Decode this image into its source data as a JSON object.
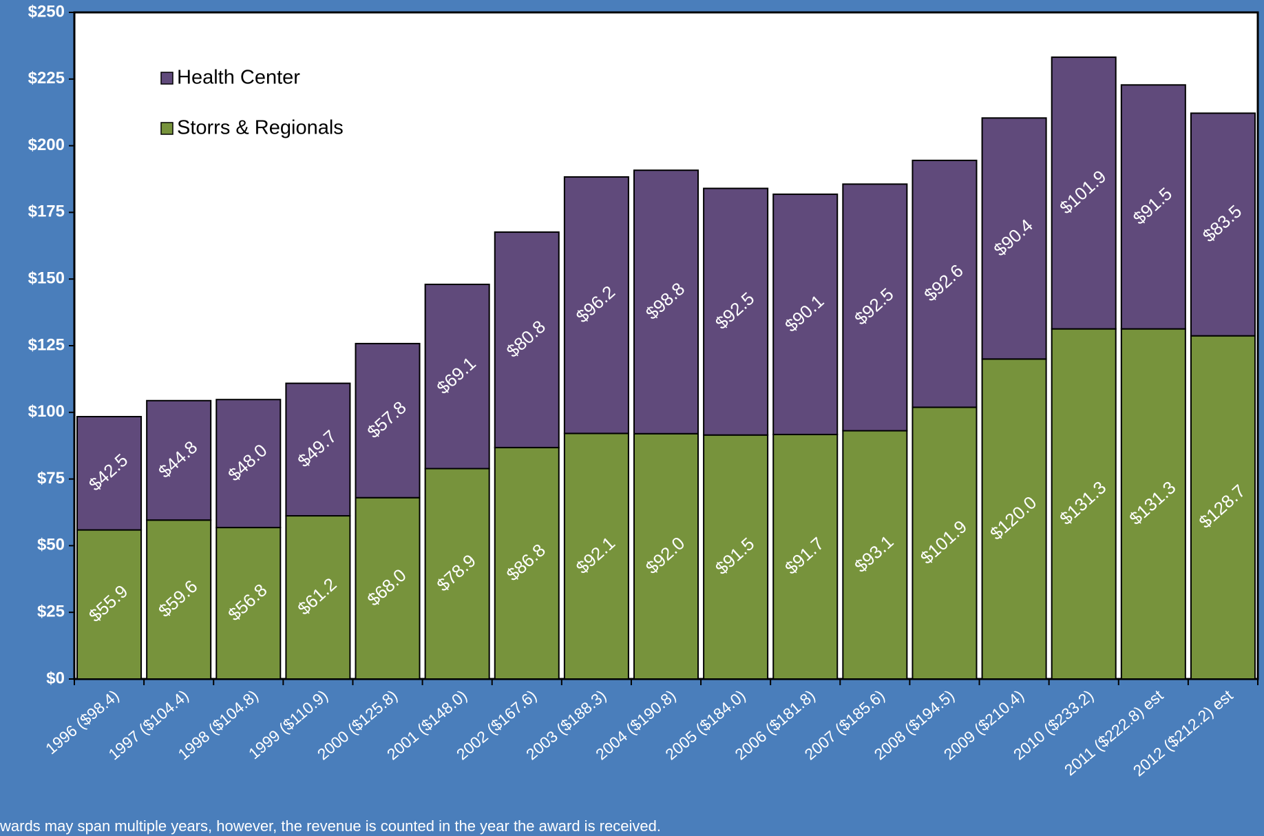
{
  "chart_data": {
    "type": "stacked_bar",
    "categories": [
      "1996 ($98.4)",
      "1997 ($104.4)",
      "1998 ($104.8)",
      "1999 ($110.9)",
      "2000 ($125.8)",
      "2001 ($148.0)",
      "2002 ($167.6)",
      "2003 ($188.3)",
      "2004 ($190.8)",
      "2005 ($184.0)",
      "2006 ($181.8)",
      "2007 ($185.6)",
      "2008 ($194.5)",
      "2009 ($210.4)",
      "2010 ($233.2)",
      "2011 ($222.8) est",
      "2012 ($212.2) est"
    ],
    "series": [
      {
        "name": "Storrs & Regionals",
        "color": "#77933c",
        "values": [
          55.9,
          59.6,
          56.8,
          61.2,
          68.0,
          78.9,
          86.8,
          92.1,
          92.0,
          91.5,
          91.7,
          93.1,
          101.9,
          120.0,
          131.3,
          131.3,
          128.7
        ],
        "value_labels": [
          "$55.9",
          "$59.6",
          "$56.8",
          "$61.2",
          "$68.0",
          "$78.9",
          "$86.8",
          "$92.1",
          "$92.0",
          "$91.5",
          "$91.7",
          "$93.1",
          "$101.9",
          "$120.0",
          "$131.3",
          "$131.3",
          "$128.7"
        ]
      },
      {
        "name": "Health Center",
        "color": "#604a7b",
        "values": [
          42.5,
          44.8,
          48.0,
          49.7,
          57.8,
          69.1,
          80.8,
          96.2,
          98.8,
          92.5,
          90.1,
          92.5,
          92.6,
          90.4,
          101.9,
          91.5,
          83.5
        ],
        "value_labels": [
          "$42.5",
          "$44.8",
          "$48.0",
          "$49.7",
          "$57.8",
          "$69.1",
          "$80.8",
          "$96.2",
          "$98.8",
          "$92.5",
          "$90.1",
          "$92.5",
          "$92.6",
          "$90.4",
          "$101.9",
          "$91.5",
          "$83.5"
        ]
      }
    ],
    "ylim": [
      0,
      250
    ],
    "yticks": [
      {
        "value": 0,
        "label": "$0"
      },
      {
        "value": 25,
        "label": "$25"
      },
      {
        "value": 50,
        "label": "$50"
      },
      {
        "value": 75,
        "label": "$75"
      },
      {
        "value": 100,
        "label": "$100"
      },
      {
        "value": 125,
        "label": "$125"
      },
      {
        "value": 150,
        "label": "$150"
      },
      {
        "value": 175,
        "label": "$175"
      },
      {
        "value": 200,
        "label": "$200"
      },
      {
        "value": 225,
        "label": "$225"
      },
      {
        "value": 250,
        "label": "$250"
      }
    ],
    "legend": "upper left",
    "footnote": "wards may span multiple years, however, the revenue is counted in the year the award is received."
  }
}
